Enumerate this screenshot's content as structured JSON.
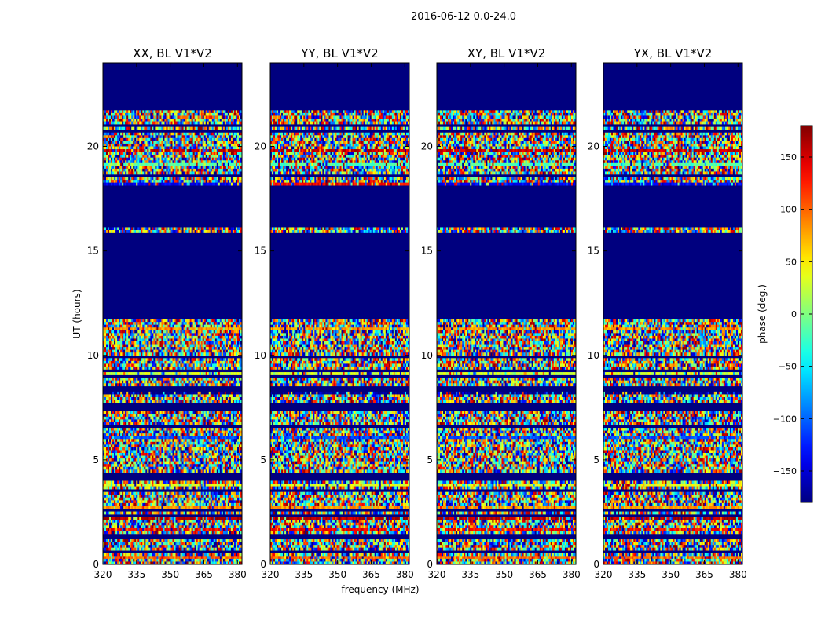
{
  "suptitle": "2016-06-12 0.0-24.0",
  "chart_data": {
    "type": "heatmap",
    "panels": [
      {
        "title": "XX, BL V1*V2",
        "key": "XX"
      },
      {
        "title": "YY, BL V1*V2",
        "key": "YY"
      },
      {
        "title": "XY, BL V1*V2",
        "key": "XY"
      },
      {
        "title": "YX, BL V1*V2",
        "key": "YX"
      }
    ],
    "xlabel": "frequency (MHz)",
    "ylabel": "UT (hours)",
    "xlim": [
      320,
      382
    ],
    "ylim": [
      0,
      24
    ],
    "xticks": [
      320,
      335,
      350,
      365,
      380
    ],
    "xtick_labels": [
      "320",
      "335",
      "350",
      "365",
      "380"
    ],
    "yticks": [
      0,
      5,
      10,
      15,
      20
    ],
    "ytick_labels": [
      "0",
      "5",
      "10",
      "15",
      "20"
    ],
    "colorbar": {
      "label": "phase (deg.)",
      "range": [
        -180,
        180
      ],
      "ticks": [
        -150,
        -100,
        -50,
        0,
        50,
        100,
        150
      ],
      "tick_labels": [
        "−150",
        "−100",
        "−50",
        "0",
        "50",
        "100",
        "150"
      ],
      "colormap": "jet"
    },
    "flagged_ut_ranges_hours": [
      [
        21.75,
        24.0
      ],
      [
        16.2,
        18.1
      ],
      [
        12.0,
        15.9
      ]
    ],
    "flagged_color": "#00007f"
  },
  "colors": {
    "flagged": "#00007f",
    "axis": "#000000",
    "background": "#ffffff"
  }
}
